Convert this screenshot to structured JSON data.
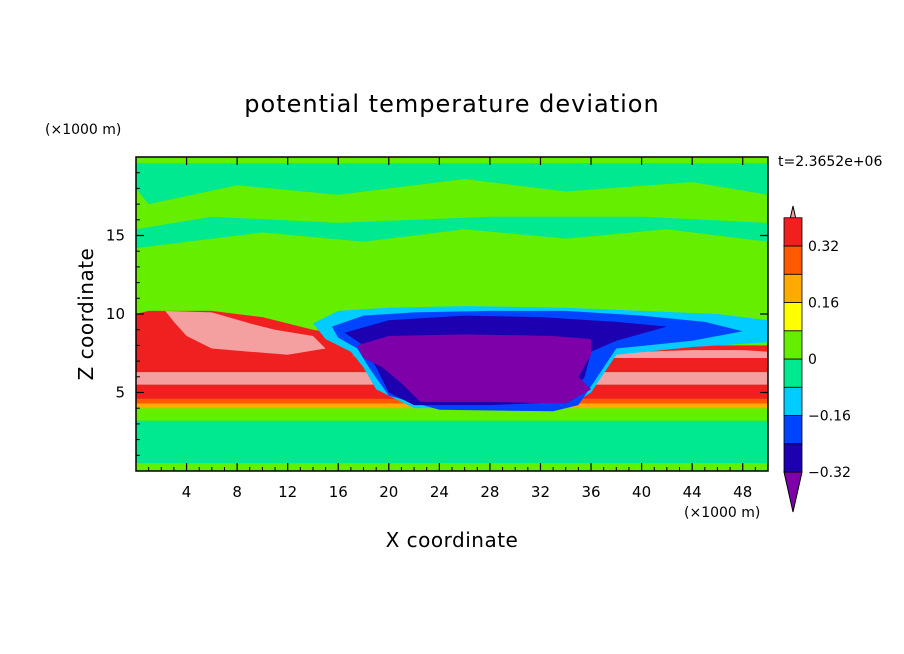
{
  "chart_data": {
    "type": "heatmap",
    "title": "potential temperature deviation",
    "xlabel": "X coordinate",
    "ylabel": "Z coordinate",
    "x_unit": "(×1000 m)",
    "y_unit": "(×1000 m)",
    "time_label": "t=2.3652e+06",
    "xlim": [
      0,
      50
    ],
    "ylim": [
      0,
      20
    ],
    "x_ticks": [
      4,
      8,
      12,
      16,
      20,
      24,
      28,
      32,
      36,
      40,
      44,
      48
    ],
    "y_ticks": [
      5,
      10,
      15
    ],
    "colorbar": {
      "levels": [
        -0.4,
        -0.32,
        -0.24,
        -0.16,
        -0.08,
        0,
        0.08,
        0.16,
        0.24,
        0.32,
        0.4
      ],
      "tick_labels": [
        {
          "value": -0.32,
          "label": "−0.32"
        },
        {
          "value": -0.16,
          "label": "−0.16"
        },
        {
          "value": 0,
          "label": "0"
        },
        {
          "value": 0.16,
          "label": "0.16"
        },
        {
          "value": 0.32,
          "label": "0.32"
        }
      ],
      "colors": [
        "#7d00a8",
        "#1d00b0",
        "#0044ff",
        "#00ccff",
        "#00e890",
        "#66ee00",
        "#ffff00",
        "#ffaa00",
        "#ff5a00",
        "#f02020",
        "#f4a0a0"
      ],
      "extend": "both"
    },
    "regions": [
      {
        "name": "upper-layer",
        "value": 0.04,
        "points": [
          [
            0,
            13
          ],
          [
            50,
            13
          ],
          [
            50,
            20
          ],
          [
            0,
            20
          ]
        ]
      },
      {
        "name": "upper-weak-negative",
        "value": -0.04,
        "points": [
          [
            1,
            17
          ],
          [
            8,
            18.2
          ],
          [
            16,
            17.6
          ],
          [
            26,
            18.6
          ],
          [
            34,
            17.8
          ],
          [
            44,
            18.4
          ],
          [
            50,
            17.6
          ],
          [
            50,
            19.6
          ],
          [
            0,
            19.6
          ],
          [
            0,
            18
          ]
        ]
      },
      {
        "name": "upper-weak-negative-2",
        "value": -0.04,
        "points": [
          [
            0,
            14.2
          ],
          [
            10,
            15.2
          ],
          [
            18,
            14.6
          ],
          [
            26,
            15.4
          ],
          [
            34,
            14.8
          ],
          [
            42,
            15.4
          ],
          [
            50,
            14.6
          ],
          [
            50,
            15.8
          ],
          [
            40,
            16.2
          ],
          [
            28,
            16.2
          ],
          [
            16,
            15.8
          ],
          [
            6,
            16.2
          ],
          [
            0,
            15.4
          ]
        ]
      },
      {
        "name": "mid-warm-layer",
        "value": 0.06,
        "points": [
          [
            0,
            8
          ],
          [
            50,
            8
          ],
          [
            50,
            13
          ],
          [
            0,
            13
          ]
        ]
      },
      {
        "name": "lower-layer",
        "value": 0.05,
        "points": [
          [
            0,
            0
          ],
          [
            50,
            0
          ],
          [
            50,
            4
          ],
          [
            0,
            4
          ]
        ]
      },
      {
        "name": "lower-weak-negative",
        "value": -0.04,
        "points": [
          [
            0,
            0.5
          ],
          [
            50,
            0.5
          ],
          [
            50,
            3.2
          ],
          [
            0,
            3.2
          ]
        ]
      },
      {
        "name": "warm-layer-yellow",
        "value": 0.18,
        "points": [
          [
            0,
            4
          ],
          [
            50,
            4
          ],
          [
            50,
            8
          ],
          [
            0,
            8
          ]
        ]
      },
      {
        "name": "warm-layer-orange",
        "value": 0.26,
        "points": [
          [
            0,
            4.3
          ],
          [
            50,
            4.3
          ],
          [
            50,
            7.6
          ],
          [
            0,
            7.6
          ]
        ]
      },
      {
        "name": "warm-layer-red",
        "value": 0.35,
        "points": [
          [
            0,
            4.6
          ],
          [
            50,
            4.6
          ],
          [
            50,
            7.3
          ],
          [
            0,
            7.3
          ]
        ]
      },
      {
        "name": "warm-core-pink",
        "value": 0.42,
        "points": [
          [
            0,
            5.5
          ],
          [
            50,
            5.5
          ],
          [
            50,
            6.3
          ],
          [
            0,
            6.3
          ]
        ]
      },
      {
        "name": "warm-bulge-left",
        "value": 0.35,
        "points": [
          [
            1,
            10.2
          ],
          [
            6,
            10.2
          ],
          [
            10,
            9.8
          ],
          [
            14,
            9
          ],
          [
            17,
            8.6
          ],
          [
            18,
            7.6
          ],
          [
            16,
            7
          ],
          [
            0,
            7.3
          ],
          [
            0,
            10
          ]
        ]
      },
      {
        "name": "warm-bulge-left-pink",
        "value": 0.42,
        "points": [
          [
            2.3,
            10.2
          ],
          [
            6,
            10.1
          ],
          [
            9,
            9.4
          ],
          [
            11,
            9
          ],
          [
            14,
            8.6
          ],
          [
            15,
            7.8
          ],
          [
            12,
            7.4
          ],
          [
            9,
            7.6
          ],
          [
            6,
            7.8
          ],
          [
            4,
            8.6
          ],
          [
            3,
            9.5
          ]
        ]
      },
      {
        "name": "warm-bulge-right",
        "value": 0.35,
        "points": [
          [
            36,
            7.6
          ],
          [
            40,
            8
          ],
          [
            44,
            8
          ],
          [
            48,
            8
          ],
          [
            50,
            8
          ],
          [
            50,
            7
          ],
          [
            36,
            7
          ]
        ]
      },
      {
        "name": "warm-bulge-right-pink",
        "value": 0.42,
        "points": [
          [
            37,
            7.4
          ],
          [
            40,
            7.6
          ],
          [
            44,
            7.7
          ],
          [
            48,
            7.7
          ],
          [
            50,
            7.6
          ],
          [
            50,
            7.2
          ],
          [
            37,
            7.2
          ]
        ]
      },
      {
        "name": "cold-cyan",
        "value": -0.12,
        "points": [
          [
            14,
            9.4
          ],
          [
            16,
            10.2
          ],
          [
            20,
            10.4
          ],
          [
            26,
            10.5
          ],
          [
            34,
            10.4
          ],
          [
            40,
            10.2
          ],
          [
            46,
            10
          ],
          [
            50,
            9.6
          ],
          [
            50,
            8.2
          ],
          [
            44,
            7.9
          ],
          [
            38,
            7.4
          ],
          [
            36,
            5
          ],
          [
            34,
            4
          ],
          [
            22,
            4
          ],
          [
            19,
            5.2
          ],
          [
            18,
            6.6
          ],
          [
            17,
            7.6
          ],
          [
            15,
            8.4
          ]
        ]
      },
      {
        "name": "cold-blue",
        "value": -0.2,
        "points": [
          [
            15.5,
            9.2
          ],
          [
            18,
            9.9
          ],
          [
            22,
            10.1
          ],
          [
            28,
            10.2
          ],
          [
            34,
            10.2
          ],
          [
            40,
            9.9
          ],
          [
            45,
            9.5
          ],
          [
            48,
            8.9
          ],
          [
            44,
            8.3
          ],
          [
            38,
            7.8
          ],
          [
            36.5,
            6
          ],
          [
            35,
            4.2
          ],
          [
            33,
            3.8
          ],
          [
            24,
            3.9
          ],
          [
            20,
            4.8
          ],
          [
            18.5,
            6.5
          ],
          [
            17.5,
            7.8
          ],
          [
            16,
            8.5
          ]
        ]
      },
      {
        "name": "cold-navy",
        "value": -0.28,
        "points": [
          [
            16.5,
            8.8
          ],
          [
            20,
            9.6
          ],
          [
            26,
            9.9
          ],
          [
            32,
            9.8
          ],
          [
            38,
            9.5
          ],
          [
            42,
            9.2
          ],
          [
            38,
            8.3
          ],
          [
            36,
            7.6
          ],
          [
            35.5,
            6
          ],
          [
            34,
            4.4
          ],
          [
            28,
            4.2
          ],
          [
            22,
            4.2
          ],
          [
            20,
            5
          ],
          [
            19,
            6.6
          ],
          [
            18,
            8
          ]
        ]
      },
      {
        "name": "cold-core-purple",
        "value": -0.38,
        "points": [
          [
            17.5,
            8
          ],
          [
            20,
            8.6
          ],
          [
            26,
            8.7
          ],
          [
            33,
            8.6
          ],
          [
            36,
            8.4
          ],
          [
            36,
            7.4
          ],
          [
            35,
            6
          ],
          [
            36,
            5.2
          ],
          [
            34,
            4.3
          ],
          [
            28,
            4.4
          ],
          [
            22.5,
            4.4
          ],
          [
            21,
            5.6
          ],
          [
            19.5,
            6.6
          ],
          [
            18,
            7.2
          ]
        ]
      }
    ]
  }
}
